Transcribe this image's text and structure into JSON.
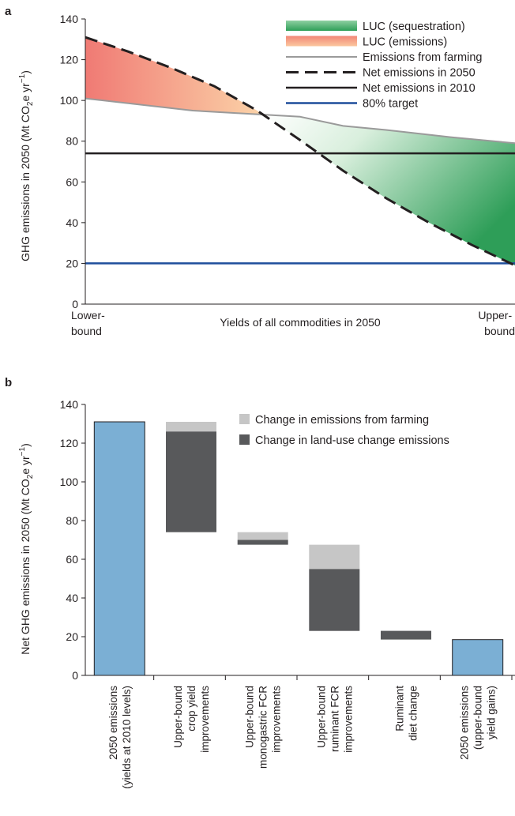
{
  "chart_data": [
    {
      "panel": "a",
      "type": "line",
      "ylabel": "GHG emissions in 2050 (Mt CO₂e yr⁻¹)",
      "xlabel": "Yields of all commodities in 2050",
      "x_left_label": [
        "Lower-",
        "bound"
      ],
      "x_right_label": [
        "Upper-",
        "bound"
      ],
      "ylim": [
        0,
        140
      ],
      "yticks": [
        "0",
        "20",
        "40",
        "60",
        "80",
        "100",
        "120",
        "140"
      ],
      "x_range": [
        0,
        1
      ],
      "legend_position": "top-right",
      "series": [
        {
          "name": "LUC (sequestration)",
          "kind": "area",
          "color": "#35a55f"
        },
        {
          "name": "LUC (emissions)",
          "kind": "area",
          "color": "#f08878"
        },
        {
          "name": "Emissions from farming",
          "kind": "line",
          "color": "#9a9a9a",
          "x": [
            0,
            0.25,
            0.5,
            0.6,
            0.7,
            0.85,
            1.0
          ],
          "y": [
            101,
            95,
            92,
            87.5,
            85.5,
            82,
            79
          ]
        },
        {
          "name": "Net emissions in 2050",
          "kind": "dashed-line",
          "color": "#231f20",
          "x": [
            0,
            0.1,
            0.2,
            0.3,
            0.4,
            0.5,
            0.6,
            0.7,
            0.8,
            0.9,
            1.0
          ],
          "y": [
            131,
            124,
            116,
            107,
            95,
            80.5,
            65.5,
            52,
            40,
            29,
            19
          ]
        },
        {
          "name": "Net emissions in 2010",
          "kind": "hline",
          "color": "#231f20",
          "y": 74
        },
        {
          "name": "80% target",
          "kind": "hline",
          "color": "#1f4e9c",
          "y": 20
        }
      ]
    },
    {
      "panel": "b",
      "type": "bar",
      "ylabel": "Net GHG emissions in 2050 (Mt CO₂e yr⁻¹)",
      "ylim": [
        0,
        140
      ],
      "yticks": [
        "0",
        "20",
        "40",
        "60",
        "80",
        "100",
        "120",
        "140"
      ],
      "legend_position": "top-right",
      "legend": [
        {
          "name": "Change in emissions from farming",
          "color": "#c6c6c6"
        },
        {
          "name": "Change in land-use change emissions",
          "color": "#58595b"
        }
      ],
      "categories": [
        [
          "2050 emissions",
          "(yields at 2010 levels)"
        ],
        [
          "Upper-bound",
          "crop yield",
          "improvements"
        ],
        [
          "Upper-bound",
          "monogastric FCR",
          "improvements"
        ],
        [
          "Upper-bound",
          "ruminant FCR",
          "improvements"
        ],
        [
          "Ruminant",
          "diet change"
        ],
        [
          "2050 emissions",
          "(upper-bound",
          "yield gains)"
        ]
      ],
      "bars": [
        {
          "segments": [
            {
              "from": 0,
              "to": 131,
              "color": "#7bafd4"
            }
          ]
        },
        {
          "segments": [
            {
              "from": 126,
              "to": 131,
              "color": "#c6c6c6"
            },
            {
              "from": 74,
              "to": 126,
              "color": "#58595b"
            }
          ]
        },
        {
          "segments": [
            {
              "from": 70,
              "to": 74,
              "color": "#c6c6c6"
            },
            {
              "from": 67.5,
              "to": 70,
              "color": "#58595b"
            }
          ]
        },
        {
          "segments": [
            {
              "from": 55,
              "to": 67.5,
              "color": "#c6c6c6"
            },
            {
              "from": 23,
              "to": 55,
              "color": "#58595b"
            }
          ]
        },
        {
          "segments": [
            {
              "from": 18.5,
              "to": 23,
              "color": "#58595b"
            }
          ]
        },
        {
          "segments": [
            {
              "from": 0,
              "to": 18.5,
              "color": "#7bafd4"
            }
          ]
        }
      ]
    }
  ]
}
